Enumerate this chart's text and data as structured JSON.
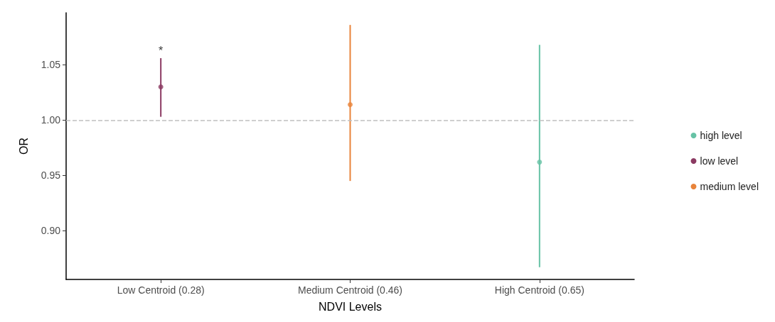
{
  "chart_data": {
    "type": "scatter",
    "xlabel": "NDVI Levels",
    "ylabel": "OR",
    "categories": [
      "Low Centroid (0.28)",
      "Medium Centroid (0.46)",
      "High Centroid (0.65)"
    ],
    "series": [
      {
        "name": "high level",
        "color": "#66c2a5",
        "values": [
          null,
          null,
          0.962
        ],
        "errors": [
          null,
          null,
          [
            0.867,
            1.068
          ]
        ]
      },
      {
        "name": "low level",
        "color": "#8b3a62",
        "values": [
          1.03,
          null,
          null
        ],
        "errors": [
          [
            1.003,
            1.056
          ],
          null,
          null
        ]
      },
      {
        "name": "medium level",
        "color": "#e8833a",
        "values": [
          null,
          1.014,
          null
        ],
        "errors": [
          null,
          [
            0.945,
            1.086
          ],
          null
        ]
      }
    ],
    "ylim": [
      0.856,
      1.097
    ],
    "yticks": [
      {
        "value": 0.9,
        "label": "0.90"
      },
      {
        "value": 0.95,
        "label": "0.95"
      },
      {
        "value": 1.0,
        "label": "1.00"
      },
      {
        "value": 1.05,
        "label": "1.05"
      }
    ],
    "ref_lines": [
      {
        "axis": "y",
        "value": 1.0,
        "color": "#c0c0c0",
        "line_style": "dashed"
      }
    ],
    "annotations": [
      {
        "text": "*",
        "x": "Low Centroid (0.28)",
        "y": 1.056
      }
    ],
    "legend": "right",
    "marker": "circle",
    "grid": false
  }
}
